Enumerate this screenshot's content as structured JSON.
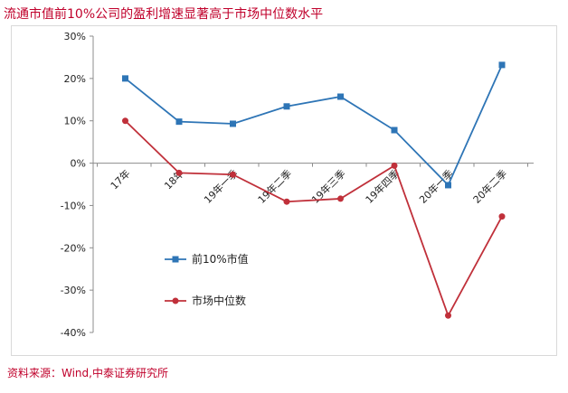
{
  "header": {
    "title": "流通市值前10%公司的盈利增速显著高于市场中位数水平"
  },
  "footer": {
    "source": "资料来源：Wind,中泰证券研究所"
  },
  "chart_data": {
    "type": "line",
    "categories": [
      "17年",
      "18年",
      "19年一季",
      "19年二季",
      "19年三季",
      "19年四季",
      "20年一季",
      "20年二季"
    ],
    "series": [
      {
        "name": "前10%市值",
        "color": "#2e75b6",
        "marker": "square",
        "values": [
          20.0,
          9.8,
          9.3,
          13.4,
          15.7,
          7.8,
          -5.2,
          23.2
        ]
      },
      {
        "name": "市场中位数",
        "color": "#c0303a",
        "marker": "circle",
        "values": [
          10.0,
          -2.3,
          -2.7,
          -9.1,
          -8.4,
          -0.6,
          -36.0,
          -12.6
        ]
      }
    ],
    "ylim": [
      -40,
      30
    ],
    "yticks": [
      -40,
      -30,
      -20,
      -10,
      0,
      10,
      20,
      30
    ],
    "ytick_format": "percent",
    "legend_position": "center-left",
    "grid": false
  }
}
